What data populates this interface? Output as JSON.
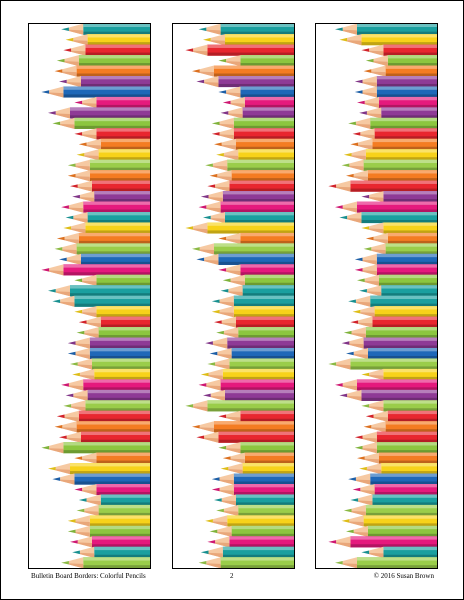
{
  "footer": {
    "title": "Bulletin Board Borders: Colorful Pencils",
    "page_number": "2",
    "copyright": "© 2016 Susan Brown"
  },
  "pencil_palette": {
    "teal": "#1a9f9f",
    "yellow": "#f7d21a",
    "red": "#e8262f",
    "green": "#8cc63f",
    "purple": "#8e3a96",
    "blue": "#1f68b8",
    "magenta": "#e5197d",
    "orange": "#f47c22",
    "lime": "#9acd4a",
    "wood": "#f6c9a2",
    "wood_shade": "#e9a77a"
  },
  "pencil_sequence": [
    "teal",
    "yellow",
    "red",
    "green",
    "orange",
    "purple",
    "blue",
    "magenta",
    "purple",
    "green",
    "red",
    "orange",
    "yellow",
    "lime",
    "orange",
    "red",
    "purple",
    "magenta",
    "teal",
    "yellow",
    "orange",
    "lime",
    "blue",
    "magenta",
    "green",
    "teal",
    "teal",
    "yellow",
    "red",
    "green",
    "purple",
    "blue",
    "lime",
    "yellow",
    "magenta",
    "purple",
    "lime",
    "red",
    "orange",
    "red",
    "green",
    "orange",
    "yellow",
    "blue",
    "magenta",
    "teal",
    "lime",
    "yellow",
    "green",
    "magenta",
    "teal",
    "lime"
  ],
  "strips": [
    {
      "name": "strip-left"
    },
    {
      "name": "strip-middle"
    },
    {
      "name": "strip-right"
    }
  ]
}
